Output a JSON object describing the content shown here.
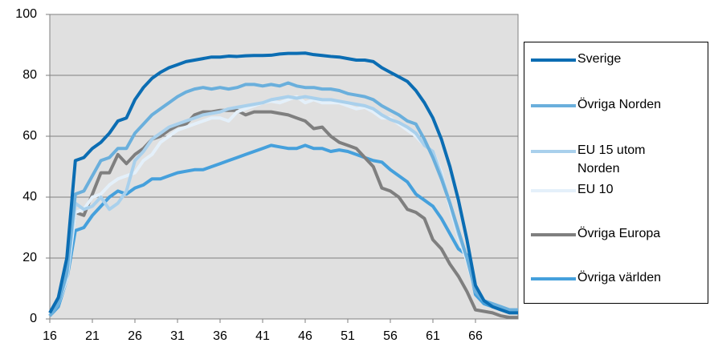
{
  "chart_data": {
    "type": "line",
    "x": [
      16,
      17,
      18,
      19,
      20,
      21,
      22,
      23,
      24,
      25,
      26,
      27,
      28,
      29,
      30,
      31,
      32,
      33,
      34,
      35,
      36,
      37,
      38,
      39,
      40,
      41,
      42,
      43,
      44,
      45,
      46,
      47,
      48,
      49,
      50,
      51,
      52,
      53,
      54,
      55,
      56,
      57,
      58,
      59,
      60,
      61,
      62,
      63,
      64,
      65,
      66,
      67,
      68,
      69,
      70,
      71
    ],
    "xlim": [
      16,
      71
    ],
    "xticks": [
      16,
      21,
      26,
      31,
      36,
      41,
      46,
      51,
      56,
      61,
      66
    ],
    "ylim": [
      0,
      100
    ],
    "yticks": [
      0,
      20,
      40,
      60,
      80,
      100
    ],
    "grid": true,
    "legend": "right",
    "series": [
      {
        "name": "Sverige",
        "color": "#0b6db3",
        "values": [
          2,
          7,
          20,
          52,
          53,
          56,
          58,
          61,
          65,
          66,
          72,
          76,
          79,
          81,
          82.5,
          83.5,
          84.5,
          85,
          85.5,
          86,
          86,
          86.3,
          86.2,
          86.4,
          86.5,
          86.5,
          86.6,
          87,
          87.2,
          87.2,
          87.3,
          86.8,
          86.5,
          86.2,
          86,
          85.5,
          85,
          85,
          84.5,
          82.5,
          81,
          79.5,
          78,
          75,
          71,
          66,
          59,
          50,
          39,
          26,
          11,
          6,
          4,
          3,
          2,
          2
        ]
      },
      {
        "name": "Övriga Norden",
        "color": "#6aafdc",
        "values": [
          1,
          5,
          15,
          41,
          42,
          47,
          52,
          53,
          56,
          56,
          61,
          64,
          67,
          69,
          71,
          73,
          74.5,
          75.5,
          76,
          75.5,
          76,
          75.5,
          76,
          77,
          77,
          76.5,
          77,
          76.5,
          77.5,
          76.5,
          76,
          76,
          75.5,
          75.5,
          75,
          74,
          73.5,
          73,
          72,
          70,
          68.5,
          67,
          65,
          64,
          59,
          53,
          46,
          38,
          29,
          20,
          9,
          6,
          5,
          4,
          3,
          3
        ]
      },
      {
        "name": "EU 15 utom Norden",
        "color": "#a9d0ec",
        "values": [
          1,
          5,
          14,
          38,
          36,
          37,
          40,
          36,
          38,
          42,
          52,
          55,
          59,
          61,
          63,
          64,
          65,
          66,
          67,
          67.5,
          68,
          69,
          69.5,
          70,
          70.5,
          71,
          72,
          72.5,
          73,
          72.5,
          73,
          72.5,
          72,
          72,
          71.5,
          71,
          70.5,
          70,
          69,
          67,
          65.5,
          64.5,
          63,
          61,
          57,
          55,
          47,
          38,
          28,
          20,
          10,
          6,
          5,
          4,
          3,
          3
        ]
      },
      {
        "name": "EU 10",
        "color": "#e4f0fa",
        "values": [
          1,
          5,
          13,
          35,
          36,
          40,
          41,
          44,
          46,
          47,
          48,
          52,
          54,
          58,
          60,
          62,
          63,
          64,
          65,
          66,
          66,
          65,
          68,
          69,
          70,
          71,
          71.5,
          71,
          72,
          73,
          71,
          72,
          71,
          71,
          71,
          70,
          69,
          69.5,
          68,
          66,
          66,
          64,
          62,
          60,
          57,
          55,
          48,
          37,
          27,
          19,
          9,
          6,
          4,
          3,
          2,
          2
        ]
      },
      {
        "name": "Övriga Europa",
        "color": "#7f7f7f",
        "values": [
          1,
          5,
          15,
          35,
          34,
          41,
          48,
          48,
          54,
          51,
          54,
          56,
          59,
          60,
          62,
          63.5,
          64,
          67,
          68,
          68,
          68.5,
          68.5,
          68.5,
          67,
          68,
          68,
          68,
          67.5,
          67,
          66,
          65,
          62.5,
          63,
          60,
          58,
          57,
          56,
          53,
          50,
          43,
          42,
          40,
          36,
          35,
          33,
          26,
          23,
          18,
          14,
          9,
          3,
          2.5,
          2,
          1,
          0.5,
          0.5
        ]
      },
      {
        "name": "Övriga världen",
        "color": "#45a0dc",
        "values": [
          1,
          4,
          13,
          29,
          30,
          34,
          37,
          40,
          42,
          41,
          43,
          44,
          46,
          46,
          47,
          48,
          48.5,
          49,
          49,
          50,
          51,
          52,
          53,
          54,
          55,
          56,
          57,
          56.5,
          56,
          56,
          57,
          56,
          56,
          55,
          55.5,
          55,
          54,
          53,
          52,
          51.5,
          49,
          47,
          45,
          41,
          39,
          37,
          33,
          28,
          23,
          21,
          8,
          5,
          4,
          3,
          2,
          2
        ]
      }
    ]
  }
}
